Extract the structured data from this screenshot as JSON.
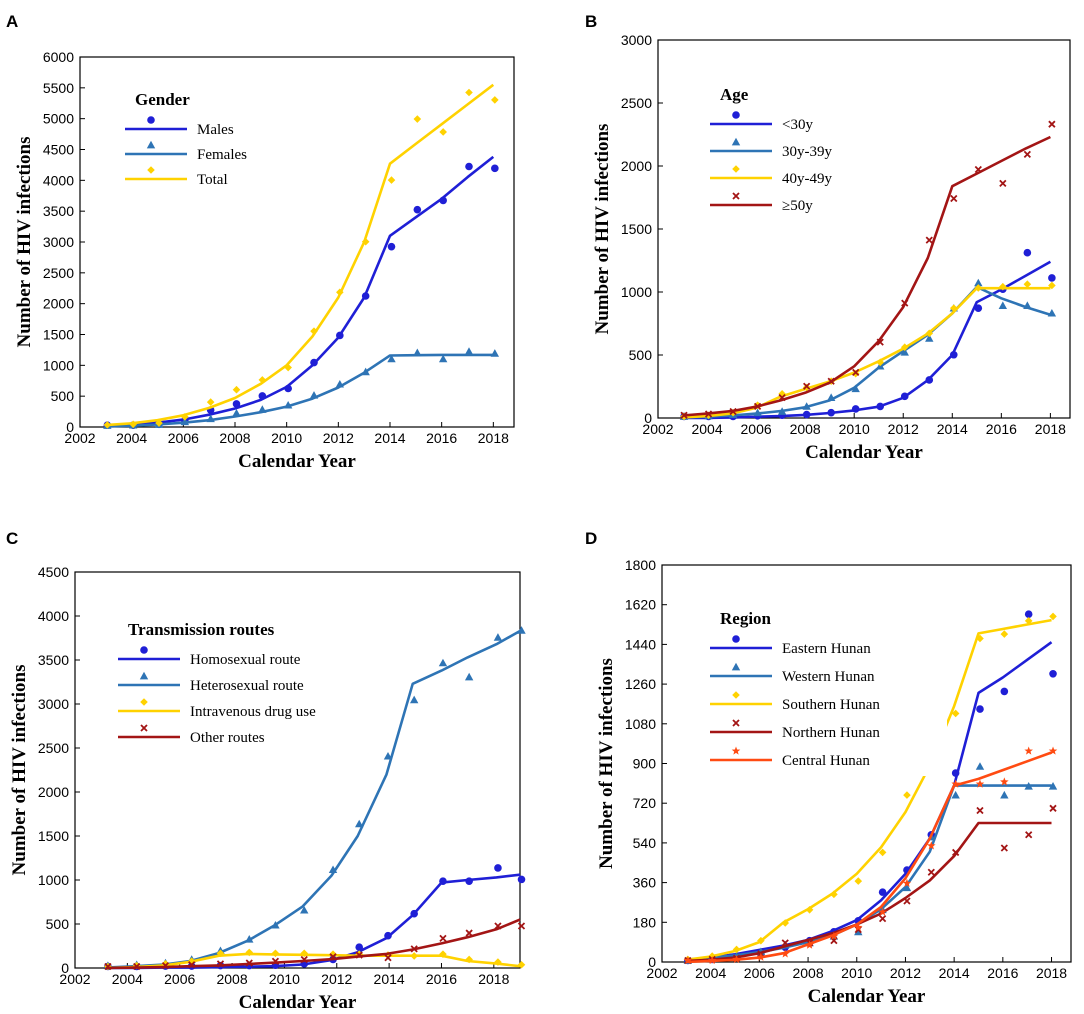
{
  "chart_data": [
    {
      "type": "line",
      "panel": "A",
      "xlabel": "Calendar Year",
      "ylabel": "Number of HIV infections",
      "xlim": [
        2002,
        2018.8
      ],
      "ylim": [
        0,
        6000
      ],
      "xticks": [
        2002,
        2004,
        2006,
        2008,
        2010,
        2012,
        2014,
        2016,
        2018
      ],
      "yticks": [
        0,
        500,
        1000,
        1500,
        2000,
        2500,
        3000,
        3500,
        4000,
        4500,
        5000,
        5500,
        6000
      ],
      "legend_title": "Gender",
      "legend_position": "top-left",
      "series": [
        {
          "name": "Males",
          "color": "#1f1fd6",
          "marker": "circle",
          "x": [
            2003,
            2004,
            2005,
            2006,
            2007,
            2008,
            2009,
            2010,
            2011,
            2012,
            2013,
            2014,
            2015,
            2016,
            2017,
            2018
          ],
          "points": [
            5,
            5,
            20,
            80,
            250,
            350,
            480,
            600,
            1020,
            1460,
            2100,
            2900,
            3500,
            3650,
            4200,
            4170
          ],
          "fit": [
            20,
            40,
            70,
            120,
            200,
            300,
            440,
            650,
            1000,
            1450,
            2100,
            3100,
            3400,
            3700,
            4050,
            4380
          ]
        },
        {
          "name": "Females",
          "color": "#2e74b5",
          "marker": "triangle",
          "x": [
            2003,
            2004,
            2005,
            2006,
            2007,
            2008,
            2009,
            2010,
            2011,
            2012,
            2013,
            2014,
            2015,
            2016,
            2017,
            2018
          ],
          "points": [
            0,
            5,
            15,
            60,
            110,
            200,
            260,
            330,
            490,
            670,
            870,
            1080,
            1180,
            1080,
            1200,
            1170
          ],
          "fit": [
            10,
            20,
            40,
            70,
            110,
            170,
            240,
            330,
            460,
            640,
            880,
            1160,
            1165,
            1170,
            1170,
            1170
          ]
        },
        {
          "name": "Total",
          "color": "#ffd200",
          "marker": "diamond",
          "x": [
            2003,
            2004,
            2005,
            2006,
            2007,
            2008,
            2009,
            2010,
            2011,
            2012,
            2013,
            2014,
            2015,
            2016,
            2017,
            2018
          ],
          "points": [
            10,
            20,
            40,
            140,
            380,
            580,
            740,
            940,
            1530,
            2160,
            2980,
            3980,
            4970,
            4760,
            5400,
            5280
          ],
          "fit": [
            30,
            60,
            110,
            190,
            310,
            470,
            700,
            1000,
            1470,
            2100,
            3000,
            4270,
            4590,
            4910,
            5230,
            5550
          ]
        }
      ]
    },
    {
      "type": "line",
      "panel": "B",
      "xlabel": "Calendar Year",
      "ylabel": "Number of HIV infections",
      "xlim": [
        2002,
        2018.8
      ],
      "ylim": [
        0,
        3000
      ],
      "xticks": [
        2002,
        2004,
        2006,
        2008,
        2010,
        2012,
        2014,
        2016,
        2018
      ],
      "yticks": [
        0,
        500,
        1000,
        1500,
        2000,
        2500,
        3000
      ],
      "legend_title": "Age",
      "legend_position": "top-left",
      "series": [
        {
          "name": "<30y",
          "color": "#1f1fd6",
          "marker": "circle",
          "x": [
            2003,
            2004,
            2005,
            2006,
            2007,
            2008,
            2009,
            2010,
            2011,
            2012,
            2013,
            2014,
            2015,
            2016,
            2017,
            2018
          ],
          "points": [
            0,
            0,
            0,
            5,
            10,
            15,
            30,
            60,
            80,
            160,
            290,
            490,
            860,
            1010,
            1300,
            1100
          ],
          "fit": [
            0,
            0,
            5,
            10,
            15,
            25,
            40,
            60,
            90,
            160,
            300,
            500,
            920,
            1020,
            1130,
            1240
          ]
        },
        {
          "name": "30y-39y",
          "color": "#2e74b5",
          "marker": "triangle",
          "x": [
            2003,
            2004,
            2005,
            2006,
            2007,
            2008,
            2009,
            2010,
            2011,
            2012,
            2013,
            2014,
            2015,
            2016,
            2017,
            2018
          ],
          "points": [
            0,
            5,
            15,
            30,
            40,
            80,
            150,
            220,
            400,
            510,
            620,
            860,
            1060,
            880,
            880,
            820
          ],
          "fit": [
            5,
            10,
            20,
            35,
            55,
            85,
            140,
            240,
            400,
            530,
            660,
            830,
            1040,
            950,
            880,
            820
          ]
        },
        {
          "name": "40y-49y",
          "color": "#ffd200",
          "marker": "diamond",
          "x": [
            2003,
            2004,
            2005,
            2006,
            2007,
            2008,
            2009,
            2010,
            2011,
            2012,
            2013,
            2014,
            2015,
            2016,
            2017,
            2018
          ],
          "points": [
            0,
            10,
            30,
            90,
            180,
            230,
            280,
            340,
            430,
            550,
            660,
            860,
            1020,
            1030,
            1050,
            1040
          ],
          "fit": [
            5,
            15,
            35,
            80,
            170,
            230,
            290,
            360,
            450,
            550,
            670,
            830,
            1030,
            1030,
            1030,
            1030
          ]
        },
        {
          "name": "≥50y",
          "color": "#a31515",
          "marker": "x",
          "x": [
            2003,
            2004,
            2005,
            2006,
            2007,
            2008,
            2009,
            2010,
            2011,
            2012,
            2013,
            2014,
            2015,
            2016,
            2017,
            2018
          ],
          "points": [
            10,
            20,
            40,
            80,
            150,
            240,
            280,
            350,
            590,
            900,
            1400,
            1730,
            1960,
            1850,
            2080,
            2320
          ],
          "fit": [
            20,
            35,
            55,
            90,
            140,
            200,
            280,
            410,
            610,
            880,
            1270,
            1840,
            1940,
            2040,
            2140,
            2230
          ]
        }
      ]
    },
    {
      "type": "line",
      "panel": "C",
      "xlabel": "Calendar Year",
      "ylabel": "Number of HIV infections",
      "xlim": [
        2002,
        2019
      ],
      "ylim": [
        0,
        4500
      ],
      "xticks": [
        2002,
        2004,
        2006,
        2008,
        2010,
        2012,
        2014,
        2016,
        2018
      ],
      "yticks": [
        0,
        500,
        1000,
        1500,
        2000,
        2500,
        3000,
        3500,
        4000,
        4500
      ],
      "legend_title": "Transmission routes",
      "legend_position": "top-left",
      "series": [
        {
          "name": "Homosexual route",
          "color": "#1f1fd6",
          "marker": "circle",
          "x": [
            2003.2,
            2004.3,
            2005.4,
            2006.4,
            2007.5,
            2008.6,
            2009.6,
            2010.7,
            2011.8,
            2012.8,
            2013.9,
            2014.9,
            2016,
            2017,
            2018.1,
            2019
          ],
          "points": [
            0,
            0,
            5,
            5,
            10,
            10,
            15,
            30,
            80,
            220,
            350,
            600,
            970,
            970,
            1120,
            990
          ],
          "fit": [
            0,
            0,
            5,
            5,
            10,
            15,
            20,
            40,
            90,
            180,
            340,
            600,
            970,
            1000,
            1030,
            1060
          ]
        },
        {
          "name": "Heterosexual route",
          "color": "#2e74b5",
          "marker": "triangle",
          "x": [
            2003.2,
            2004.3,
            2005.4,
            2006.4,
            2007.5,
            2008.6,
            2009.6,
            2010.7,
            2011.8,
            2012.8,
            2013.9,
            2014.9,
            2016,
            2017,
            2018.1,
            2019
          ],
          "points": [
            10,
            20,
            40,
            80,
            180,
            310,
            470,
            640,
            1100,
            1620,
            2390,
            3030,
            3450,
            3290,
            3740,
            3820
          ],
          "fit": [
            5,
            20,
            40,
            80,
            170,
            310,
            480,
            700,
            1050,
            1500,
            2200,
            3230,
            3380,
            3530,
            3680,
            3830
          ]
        },
        {
          "name": "Intravenous drug use",
          "color": "#ffd200",
          "marker": "diamond",
          "x": [
            2003.2,
            2004.3,
            2005.4,
            2006.4,
            2007.5,
            2008.6,
            2009.6,
            2010.7,
            2011.8,
            2012.8,
            2013.9,
            2014.9,
            2016,
            2017,
            2018.1,
            2019
          ],
          "points": [
            0,
            10,
            30,
            60,
            150,
            160,
            150,
            150,
            140,
            140,
            130,
            120,
            140,
            80,
            50,
            20
          ],
          "fit": [
            0,
            10,
            30,
            70,
            140,
            160,
            155,
            150,
            145,
            140,
            140,
            140,
            140,
            80,
            50,
            20
          ]
        },
        {
          "name": "Other routes",
          "color": "#a31515",
          "marker": "x",
          "x": [
            2003.2,
            2004.3,
            2005.4,
            2006.4,
            2007.5,
            2008.6,
            2009.6,
            2010.7,
            2011.8,
            2012.8,
            2013.9,
            2014.9,
            2016,
            2017,
            2018.1,
            2019
          ],
          "points": [
            0,
            0,
            10,
            20,
            30,
            40,
            60,
            80,
            110,
            130,
            100,
            200,
            320,
            380,
            460,
            460
          ],
          "fit": [
            0,
            5,
            10,
            20,
            30,
            45,
            60,
            80,
            100,
            130,
            160,
            210,
            280,
            350,
            440,
            550
          ]
        }
      ]
    },
    {
      "type": "line",
      "panel": "D",
      "xlabel": "Calendar Year",
      "ylabel": "Number of HIV infections",
      "xlim": [
        2002,
        2018.8
      ],
      "ylim": [
        0,
        1800
      ],
      "xticks": [
        2002,
        2004,
        2006,
        2008,
        2010,
        2012,
        2014,
        2016,
        2018
      ],
      "yticks": [
        0,
        180,
        360,
        540,
        720,
        900,
        1080,
        1260,
        1440,
        1620,
        1800
      ],
      "legend_title": "Region",
      "legend_position": "top-left",
      "series": [
        {
          "name": "Eastern Hunan",
          "color": "#1f1fd6",
          "marker": "circle",
          "x": [
            2003,
            2004,
            2005,
            2006,
            2007,
            2008,
            2009,
            2010,
            2011,
            2012,
            2013,
            2014,
            2015,
            2016,
            2017,
            2018
          ],
          "points": [
            0,
            5,
            15,
            30,
            60,
            90,
            130,
            180,
            310,
            410,
            570,
            850,
            1140,
            1220,
            1570,
            1300
          ],
          "fit": [
            10,
            20,
            35,
            55,
            75,
            100,
            140,
            190,
            280,
            400,
            560,
            800,
            1220,
            1290,
            1370,
            1450
          ]
        },
        {
          "name": "Western Hunan",
          "color": "#2e74b5",
          "marker": "triangle",
          "x": [
            2003,
            2004,
            2005,
            2006,
            2007,
            2008,
            2009,
            2010,
            2011,
            2012,
            2013,
            2014,
            2015,
            2016,
            2017,
            2018
          ],
          "points": [
            0,
            10,
            20,
            40,
            70,
            80,
            110,
            130,
            230,
            330,
            560,
            750,
            880,
            750,
            790,
            790
          ],
          "fit": [
            10,
            20,
            30,
            45,
            65,
            90,
            120,
            170,
            240,
            340,
            500,
            800,
            800,
            800,
            800,
            800
          ]
        },
        {
          "name": "Southern Hunan",
          "color": "#ffd200",
          "marker": "diamond",
          "x": [
            2003,
            2004,
            2005,
            2006,
            2007,
            2008,
            2009,
            2010,
            2011,
            2012,
            2013,
            2014,
            2015,
            2016,
            2017,
            2018
          ],
          "points": [
            5,
            20,
            50,
            90,
            170,
            230,
            300,
            360,
            490,
            750,
            960,
            1120,
            1460,
            1480,
            1540,
            1560
          ],
          "fit": [
            10,
            25,
            50,
            90,
            180,
            240,
            310,
            400,
            520,
            680,
            890,
            1160,
            1490,
            1510,
            1530,
            1550
          ]
        },
        {
          "name": "Northern Hunan",
          "color": "#a31515",
          "marker": "x",
          "x": [
            2003,
            2004,
            2005,
            2006,
            2007,
            2008,
            2009,
            2010,
            2011,
            2012,
            2013,
            2014,
            2015,
            2016,
            2017,
            2018
          ],
          "points": [
            0,
            5,
            10,
            30,
            80,
            80,
            90,
            140,
            190,
            270,
            400,
            490,
            680,
            510,
            570,
            690
          ],
          "fit": [
            5,
            10,
            20,
            40,
            70,
            100,
            130,
            170,
            220,
            290,
            370,
            480,
            630,
            630,
            630,
            630
          ]
        },
        {
          "name": "Central Hunan",
          "color": "#ff4b12",
          "marker": "star",
          "x": [
            2003,
            2004,
            2005,
            2006,
            2007,
            2008,
            2009,
            2010,
            2011,
            2012,
            2013,
            2014,
            2015,
            2016,
            2017,
            2018
          ],
          "points": [
            0,
            0,
            5,
            15,
            30,
            70,
            110,
            150,
            220,
            350,
            520,
            800,
            800,
            810,
            950,
            950
          ],
          "fit": [
            0,
            5,
            10,
            20,
            40,
            80,
            120,
            170,
            250,
            380,
            560,
            800,
            830,
            870,
            910,
            950
          ]
        }
      ]
    }
  ]
}
